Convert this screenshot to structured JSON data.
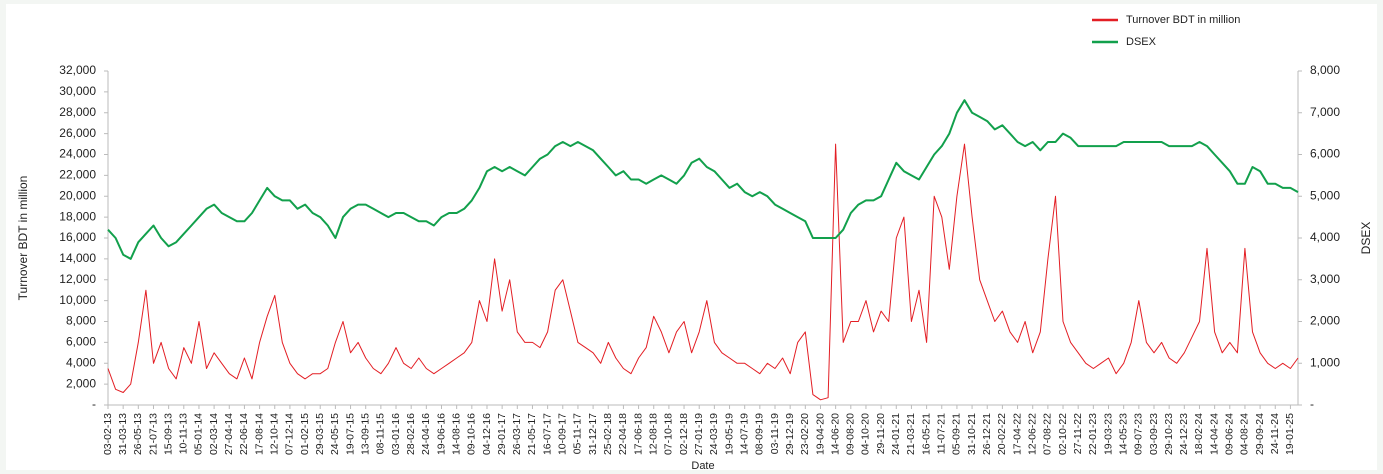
{
  "chart_data": {
    "type": "line",
    "x_label": "Date",
    "y_label": "Turnover BDT in million",
    "y2_label": "DSEX",
    "legend": "top-right",
    "grid": false,
    "categories": [
      "03-02-13",
      null,
      "31-03-13",
      null,
      "26-05-13",
      null,
      "21-07-13",
      null,
      "15-09-13",
      null,
      "10-11-13",
      null,
      "05-01-14",
      null,
      "02-03-14",
      null,
      "27-04-14",
      null,
      "22-06-14",
      null,
      "17-08-14",
      null,
      "12-10-14",
      null,
      "07-12-14",
      null,
      "01-02-15",
      null,
      "29-03-15",
      null,
      "24-05-15",
      null,
      "19-07-15",
      null,
      "13-09-15",
      null,
      "08-11-15",
      null,
      "03-01-16",
      null,
      "28-02-16",
      null,
      "24-04-16",
      null,
      "19-06-16",
      null,
      "14-08-16",
      null,
      "09-10-16",
      null,
      "04-12-16",
      null,
      "29-01-17",
      null,
      "26-03-17",
      null,
      "21-05-17",
      null,
      "16-07-17",
      null,
      "10-09-17",
      null,
      "05-11-17",
      null,
      "31-12-17",
      null,
      "25-02-18",
      null,
      "22-04-18",
      null,
      "17-06-18",
      null,
      "12-08-18",
      null,
      "07-10-18",
      null,
      "02-12-18",
      null,
      "27-01-19",
      null,
      "24-03-19",
      null,
      "19-05-19",
      null,
      "14-07-19",
      null,
      "08-09-19",
      null,
      "03-11-19",
      null,
      "29-12-19",
      null,
      "23-02-20",
      null,
      "19-04-20",
      null,
      "14-06-20",
      null,
      "09-08-20",
      null,
      "04-10-20",
      null,
      "29-11-20",
      null,
      "24-01-21",
      null,
      "21-03-21",
      null,
      "16-05-21",
      null,
      "11-07-21",
      null,
      "05-09-21",
      null,
      "31-10-21",
      null,
      "26-12-21",
      null,
      "20-02-22",
      null,
      "17-04-22",
      null,
      "12-06-22",
      null,
      "07-08-22",
      null,
      "02-10-22",
      null,
      "27-11-22",
      null,
      "22-01-23",
      null,
      "19-03-23",
      null,
      "14-05-23",
      null,
      "09-07-23",
      null,
      "03-09-23",
      null,
      "29-10-23",
      null,
      "24-12-23",
      null,
      "18-02-24",
      null,
      "14-04-24",
      null,
      "09-06-24",
      null,
      "04-08-24",
      null,
      "29-09-24",
      null,
      "24-11-24",
      null,
      "19-01-25",
      null
    ],
    "series": [
      {
        "name": "Turnover BDT in million",
        "color": "#e31e24",
        "values": [
          3500,
          1500,
          1200,
          2000,
          6000,
          11000,
          4000,
          6000,
          3500,
          2500,
          5500,
          4000,
          8000,
          3500,
          5000,
          4000,
          3000,
          2500,
          4500,
          2500,
          6000,
          8500,
          10500,
          6000,
          4000,
          3000,
          2500,
          3000,
          3000,
          3500,
          6000,
          8000,
          5000,
          6000,
          4500,
          3500,
          3000,
          4000,
          5500,
          4000,
          3500,
          4500,
          3500,
          3000,
          3500,
          4000,
          4500,
          5000,
          6000,
          10000,
          8000,
          14000,
          9000,
          12000,
          7000,
          6000,
          6000,
          5500,
          7000,
          11000,
          12000,
          9000,
          6000,
          5500,
          5000,
          4000,
          6000,
          4500,
          3500,
          3000,
          4500,
          5500,
          8500,
          7000,
          5000,
          7000,
          8000,
          5000,
          7000,
          10000,
          6000,
          5000,
          4500,
          4000,
          4000,
          3500,
          3000,
          4000,
          3500,
          4500,
          3000,
          6000,
          7000,
          1000,
          500,
          700,
          25000,
          6000,
          8000,
          8000,
          10000,
          7000,
          9000,
          8000,
          16000,
          18000,
          8000,
          11000,
          6000,
          20000,
          18000,
          13000,
          20000,
          25000,
          18000,
          12000,
          10000,
          8000,
          9000,
          7000,
          6000,
          8000,
          5000,
          7000,
          14000,
          20000,
          8000,
          6000,
          5000,
          4000,
          3500,
          4000,
          4500,
          3000,
          4000,
          6000,
          10000,
          6000,
          5000,
          6000,
          4500,
          4000,
          5000,
          6500,
          8000,
          15000,
          7000,
          5000,
          6000,
          5000,
          15000,
          7000,
          5000,
          4000,
          3500,
          4000,
          3500,
          4500
        ]
      },
      {
        "name": "DSEX",
        "color": "#12a04c",
        "axis": "y2",
        "values": [
          4200,
          4000,
          3600,
          3500,
          3900,
          4100,
          4300,
          4000,
          3800,
          3900,
          4100,
          4300,
          4500,
          4700,
          4800,
          4600,
          4500,
          4400,
          4400,
          4600,
          4900,
          5200,
          5000,
          4900,
          4900,
          4700,
          4800,
          4600,
          4500,
          4300,
          4000,
          4500,
          4700,
          4800,
          4800,
          4700,
          4600,
          4500,
          4600,
          4600,
          4500,
          4400,
          4400,
          4300,
          4500,
          4600,
          4600,
          4700,
          4900,
          5200,
          5600,
          5700,
          5600,
          5700,
          5600,
          5500,
          5700,
          5900,
          6000,
          6200,
          6300,
          6200,
          6300,
          6200,
          6100,
          5900,
          5700,
          5500,
          5600,
          5400,
          5400,
          5300,
          5400,
          5500,
          5400,
          5300,
          5500,
          5800,
          5900,
          5700,
          5600,
          5400,
          5200,
          5300,
          5100,
          5000,
          5100,
          5000,
          4800,
          4700,
          4600,
          4500,
          4400,
          4000,
          4000,
          4000,
          4000,
          4200,
          4600,
          4800,
          4900,
          4900,
          5000,
          5400,
          5800,
          5600,
          5500,
          5400,
          5700,
          6000,
          6200,
          6500,
          7000,
          7300,
          7000,
          6900,
          6800,
          6600,
          6700,
          6500,
          6300,
          6200,
          6300,
          6100,
          6300,
          6300,
          6500,
          6400,
          6200,
          6200,
          6200,
          6200,
          6200,
          6200,
          6300,
          6300,
          6300,
          6300,
          6300,
          6300,
          6200,
          6200,
          6200,
          6200,
          6300,
          6200,
          6000,
          5800,
          5600,
          5300,
          5300,
          5700,
          5600,
          5300,
          5300,
          5200,
          5200,
          5100
        ]
      }
    ],
    "ylim": [
      0,
      32000
    ],
    "yticks": [
      {
        "value": 0,
        "label": "-"
      },
      {
        "value": 2000,
        "label": "2,000"
      },
      {
        "value": 4000,
        "label": "4,000"
      },
      {
        "value": 6000,
        "label": "6,000"
      },
      {
        "value": 8000,
        "label": "8,000"
      },
      {
        "value": 10000,
        "label": "10,000"
      },
      {
        "value": 12000,
        "label": "12,000"
      },
      {
        "value": 14000,
        "label": "14,000"
      },
      {
        "value": 16000,
        "label": "16,000"
      },
      {
        "value": 18000,
        "label": "18,000"
      },
      {
        "value": 20000,
        "label": "20,000"
      },
      {
        "value": 22000,
        "label": "22,000"
      },
      {
        "value": 24000,
        "label": "24,000"
      },
      {
        "value": 26000,
        "label": "26,000"
      },
      {
        "value": 28000,
        "label": "28,000"
      },
      {
        "value": 30000,
        "label": "30,000"
      },
      {
        "value": 32000,
        "label": "32,000"
      }
    ],
    "y2lim": [
      0,
      8000
    ],
    "y2ticks": [
      {
        "value": 0,
        "label": "-"
      },
      {
        "value": 1000,
        "label": "1,000"
      },
      {
        "value": 2000,
        "label": "2,000"
      },
      {
        "value": 3000,
        "label": "3,000"
      },
      {
        "value": 4000,
        "label": "4,000"
      },
      {
        "value": 5000,
        "label": "5,000"
      },
      {
        "value": 6000,
        "label": "6,000"
      },
      {
        "value": 7000,
        "label": "7,000"
      },
      {
        "value": 8000,
        "label": "8,000"
      }
    ]
  }
}
